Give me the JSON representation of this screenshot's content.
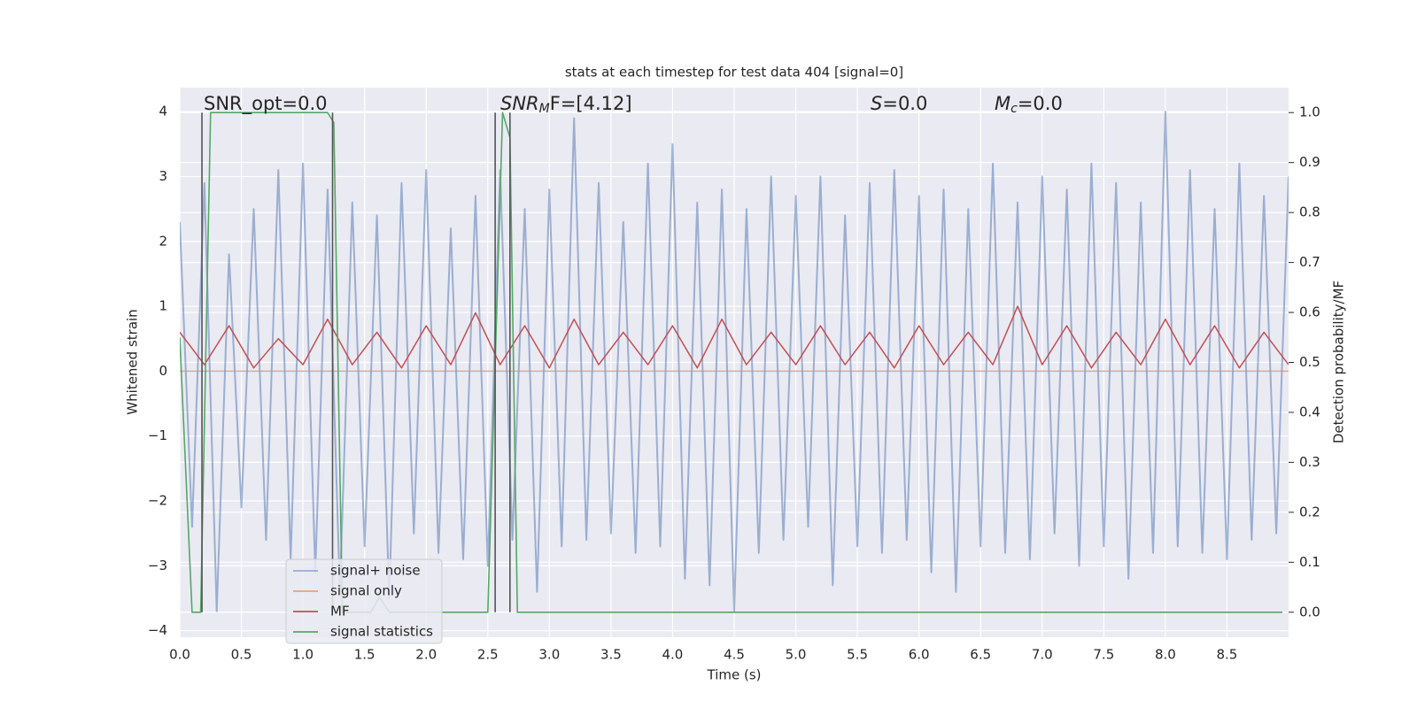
{
  "chart_data": {
    "type": "line",
    "title": "stats at each timestep for test data 404 [signal=0]",
    "xlabel": "Time (s)",
    "ylabel": "Whitened strain",
    "y2label": "Detection probability/MF",
    "xlim": [
      0,
      9.0
    ],
    "ylim": [
      -4.1,
      4.37
    ],
    "y2lim": [
      -0.05,
      1.05
    ],
    "xticks": [
      {
        "value": 0,
        "label": "0.0"
      },
      0.5,
      {
        "value": 1,
        "label": "1.0"
      },
      1.5,
      {
        "value": 2,
        "label": "2.0"
      },
      2.5,
      {
        "value": 3,
        "label": "3.0"
      },
      3.5,
      {
        "value": 4,
        "label": "4.0"
      },
      4.5,
      {
        "value": 5,
        "label": "5.0"
      },
      5.5,
      {
        "value": 6,
        "label": "6.0"
      },
      6.5,
      {
        "value": 7,
        "label": "7.0"
      },
      7.5,
      {
        "value": 8,
        "label": "8.0"
      },
      8.5
    ],
    "yticks": [
      {
        "value": -4,
        "label": "−4"
      },
      {
        "value": -3,
        "label": "−3"
      },
      {
        "value": -2,
        "label": "−2"
      },
      {
        "value": -1,
        "label": "−1"
      },
      0,
      1,
      2,
      3,
      4
    ],
    "y2ticks": [
      {
        "value": 0,
        "label": "0.0"
      },
      0.1,
      0.2,
      0.3,
      0.4,
      0.5,
      0.6,
      0.7,
      0.8,
      0.9,
      {
        "value": 1,
        "label": "1.0"
      }
    ],
    "grid": true,
    "legend": "lower left",
    "series": [
      {
        "name": "signal+ noise",
        "color": "#4c72b0",
        "x": [
          0,
          0.1,
          0.2,
          0.3,
          0.4,
          0.5,
          0.6,
          0.7,
          0.8,
          0.9,
          1.0,
          1.1,
          1.2,
          1.3,
          1.4,
          1.5,
          1.6,
          1.7,
          1.8,
          1.9,
          2.0,
          2.1,
          2.2,
          2.3,
          2.4,
          2.5,
          2.6,
          2.7,
          2.8,
          2.9,
          3.0,
          3.1,
          3.2,
          3.3,
          3.4,
          3.5,
          3.6,
          3.7,
          3.8,
          3.9,
          4.0,
          4.1,
          4.2,
          4.3,
          4.4,
          4.5,
          4.6,
          4.7,
          4.8,
          4.9,
          5.0,
          5.1,
          5.2,
          5.3,
          5.4,
          5.5,
          5.6,
          5.7,
          5.8,
          5.9,
          6.0,
          6.1,
          6.2,
          6.3,
          6.4,
          6.5,
          6.6,
          6.7,
          6.8,
          6.9,
          7.0,
          7.1,
          7.2,
          7.3,
          7.4,
          7.5,
          7.6,
          7.7,
          7.8,
          7.9,
          8.0,
          8.1,
          8.2,
          8.3,
          8.4,
          8.5,
          8.6,
          8.7,
          8.8,
          8.9,
          9.0
        ],
        "values": [
          2.3,
          -2.4,
          2.9,
          -3.7,
          1.8,
          -2.1,
          2.5,
          -2.6,
          3.1,
          -2.9,
          3.2,
          -3.1,
          2.8,
          -3.4,
          2.6,
          -2.7,
          2.4,
          -3.5,
          2.9,
          -2.5,
          3.1,
          -2.8,
          2.2,
          -2.9,
          2.7,
          -3.0,
          3.1,
          -2.6,
          2.5,
          -3.4,
          2.8,
          -2.7,
          3.9,
          -2.6,
          2.9,
          -2.5,
          2.3,
          -2.8,
          3.2,
          -2.7,
          3.5,
          -3.2,
          2.6,
          -3.3,
          2.8,
          -3.7,
          2.5,
          -2.8,
          3.0,
          -2.6,
          2.7,
          -2.4,
          3.0,
          -3.3,
          2.4,
          -2.7,
          2.9,
          -2.8,
          3.1,
          -2.6,
          2.7,
          -3.1,
          2.8,
          -3.4,
          2.5,
          -2.7,
          3.2,
          -2.8,
          2.6,
          -2.9,
          3.0,
          -2.5,
          2.8,
          -3.0,
          3.2,
          -2.7,
          2.9,
          -3.2,
          2.6,
          -2.8,
          4.0,
          -2.7,
          3.1,
          -2.8,
          2.5,
          -2.9,
          3.2,
          -2.6,
          2.7,
          -2.5,
          3.0
        ]
      },
      {
        "name": "signal only",
        "color": "#dd8452",
        "x": [
          0,
          9.0
        ],
        "values": [
          0,
          0
        ]
      },
      {
        "name": "MF",
        "color": "#c44e52",
        "x": [
          0,
          0.2,
          0.4,
          0.6,
          0.8,
          1.0,
          1.2,
          1.4,
          1.6,
          1.8,
          2.0,
          2.2,
          2.4,
          2.6,
          2.8,
          3.0,
          3.2,
          3.4,
          3.6,
          3.8,
          4.0,
          4.2,
          4.4,
          4.6,
          4.8,
          5.0,
          5.2,
          5.4,
          5.6,
          5.8,
          6.0,
          6.2,
          6.4,
          6.6,
          6.8,
          7.0,
          7.2,
          7.4,
          7.6,
          7.8,
          8.0,
          8.2,
          8.4,
          8.6,
          8.8,
          9.0
        ],
        "values": [
          0.6,
          0.1,
          0.7,
          0.05,
          0.5,
          0.1,
          0.8,
          0.1,
          0.6,
          0.05,
          0.7,
          0.1,
          0.9,
          0.1,
          0.7,
          0.05,
          0.8,
          0.1,
          0.6,
          0.1,
          0.7,
          0.05,
          0.8,
          0.1,
          0.6,
          0.1,
          0.7,
          0.1,
          0.6,
          0.05,
          0.7,
          0.1,
          0.6,
          0.1,
          1.0,
          0.1,
          0.7,
          0.05,
          0.6,
          0.1,
          0.8,
          0.1,
          0.7,
          0.05,
          0.6,
          0.1
        ]
      },
      {
        "name": "signal statistics",
        "color": "#55a868",
        "axis": "y2",
        "x": [
          0,
          0.1,
          0.17,
          0.25,
          1.2,
          1.25,
          1.32,
          1.55,
          1.62,
          1.7,
          2.5,
          2.62,
          2.68,
          2.74,
          8.95
        ],
        "values": [
          0.55,
          0,
          0,
          1.0,
          1.0,
          0.98,
          0,
          0,
          0.03,
          0,
          0,
          1.0,
          0.95,
          0,
          0
        ]
      }
    ],
    "vlines": [
      0.18,
      1.24,
      2.56,
      2.68
    ],
    "annotations": [
      {
        "text": "SNR_opt=0.0"
      },
      {
        "base": "SNR",
        "sub": "M",
        "tail": "F=[4.12]"
      },
      {
        "base": "S",
        "tail": "=0.0"
      },
      {
        "base": "M",
        "sub": "c",
        "tail": "=0.0"
      }
    ]
  }
}
